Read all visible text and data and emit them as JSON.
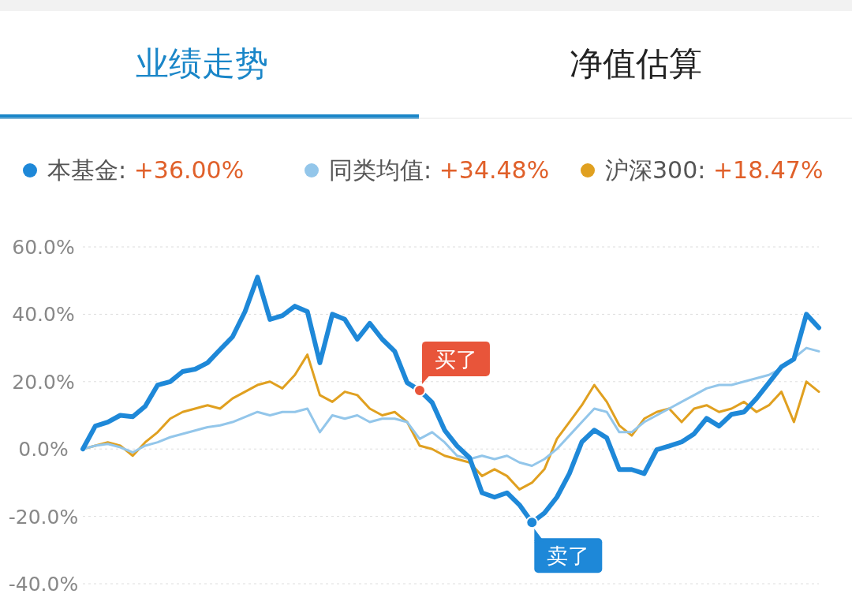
{
  "chart_data": {
    "type": "line",
    "title": "业绩走势",
    "subtitle": "净值估算",
    "categories": [
      null,
      null,
      null,
      null,
      null,
      null,
      null,
      null,
      null,
      null,
      null,
      null,
      null,
      null,
      null,
      null,
      null,
      null,
      null,
      null,
      null,
      null,
      null,
      null,
      null,
      null,
      null,
      null,
      null,
      null,
      null,
      null,
      null,
      null,
      null,
      null,
      null,
      null,
      null,
      null,
      null,
      null,
      null,
      null,
      null,
      null,
      null,
      null,
      null,
      null,
      null,
      null,
      null,
      null,
      null,
      null,
      null,
      null,
      null,
      null
    ],
    "series": [
      {
        "name": "沪深300: +18.47%",
        "color": "#e0a020",
        "values": [
          0,
          1,
          2,
          1,
          -2,
          2,
          5,
          9,
          11,
          12,
          13,
          12,
          15,
          17,
          19,
          20,
          18,
          22,
          28,
          16,
          14,
          17,
          16,
          12,
          10,
          11,
          8,
          1,
          0,
          -2,
          -3,
          -4,
          -8,
          -6,
          -8,
          -12,
          -10,
          -6,
          3,
          8,
          13,
          19,
          14,
          7,
          4,
          9,
          11,
          12,
          8,
          12,
          13,
          11,
          12,
          14,
          11,
          13,
          17,
          8,
          20,
          17
        ]
      },
      {
        "name": "同类均值: +34.48%",
        "color": "#93c6ea",
        "values": [
          0,
          1,
          1.5,
          0.5,
          -1,
          1,
          2,
          3.5,
          4.5,
          5.5,
          6.5,
          7,
          8,
          9.5,
          11,
          10,
          11,
          11,
          12,
          5,
          10,
          9,
          10,
          8,
          9,
          9,
          8,
          3,
          5,
          2,
          -2,
          -3,
          -2,
          -3,
          -2,
          -4,
          -5,
          -3,
          0,
          4,
          8,
          12,
          11,
          5,
          5,
          8,
          10,
          12,
          14,
          16,
          18,
          19,
          19,
          20,
          21,
          22,
          24,
          27,
          30,
          29
        ]
      },
      {
        "name": "本基金: +36.00%",
        "color": "#1e88d8",
        "values": [
          0,
          6.8,
          8,
          10,
          9.6,
          12.7,
          19,
          20,
          23,
          23.7,
          25.6,
          29.5,
          33.3,
          40.8,
          51,
          38.5,
          39.6,
          42.4,
          40.8,
          25.6,
          40,
          38.5,
          32.6,
          37.3,
          32.6,
          29,
          19.7,
          17.4,
          13.8,
          5.6,
          0.9,
          -2.6,
          -13,
          -14.3,
          -13,
          -16.6,
          -21.8,
          -19,
          -14.3,
          -7.3,
          2.1,
          5.6,
          3.3,
          -6.1,
          -6.1,
          -7.3,
          -0.2,
          0.9,
          2.1,
          4.5,
          9.1,
          6.8,
          10.3,
          11,
          15,
          19.7,
          24.4,
          26.7,
          40,
          36
        ]
      },
      {
        "type": "scatter",
        "marker": "circle",
        "colors": [
          null,
          null,
          null,
          null,
          null,
          null,
          null,
          null,
          null,
          null,
          null,
          null,
          null,
          null,
          null,
          null,
          null,
          null,
          null,
          null,
          null,
          null,
          null,
          null,
          null,
          null,
          null,
          "#e8553a",
          null,
          null,
          null,
          null,
          null,
          null,
          null,
          null,
          "#1e88d8",
          null,
          null,
          null,
          null,
          null,
          null,
          null,
          null,
          null,
          null,
          null,
          null,
          null,
          null,
          null,
          null,
          null,
          null,
          null,
          null,
          null,
          null,
          null
        ],
        "values": [
          null,
          null,
          null,
          null,
          null,
          null,
          null,
          null,
          null,
          null,
          null,
          null,
          null,
          null,
          null,
          null,
          null,
          null,
          null,
          null,
          null,
          null,
          null,
          null,
          null,
          null,
          null,
          17.4,
          null,
          null,
          null,
          null,
          null,
          null,
          null,
          null,
          -21.8,
          null,
          null,
          null,
          null,
          null,
          null,
          null,
          null,
          null,
          null,
          null,
          null,
          null,
          null,
          null,
          null,
          null,
          null,
          null,
          null,
          null,
          null,
          null
        ]
      }
    ],
    "annotations": [
      "买了",
      "卖了"
    ],
    "ylim": [
      -40,
      60
    ],
    "yticks": [
      {
        "value": -40,
        "label": "-40.0%"
      },
      {
        "value": -20,
        "label": "-20.0%"
      },
      {
        "value": 0,
        "label": "0.0%"
      },
      {
        "value": 20,
        "label": "20.0%"
      },
      {
        "value": 40,
        "label": "40.0%"
      },
      {
        "value": 60,
        "label": "60.0%"
      }
    ],
    "grid": "y",
    "legend": "top left",
    "marker": "none",
    "line_style": "solid"
  }
}
